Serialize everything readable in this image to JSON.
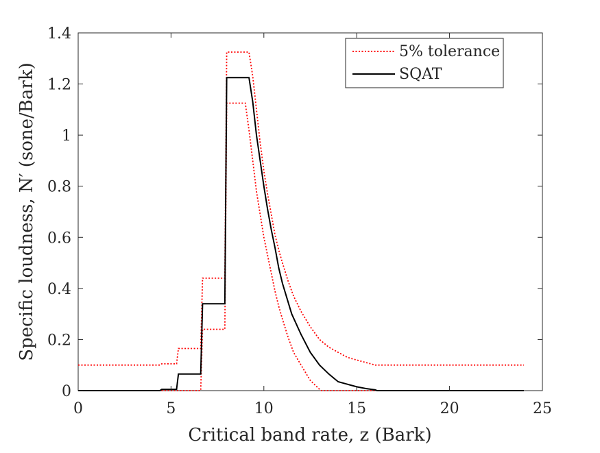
{
  "chart_data": {
    "type": "line",
    "xlabel": "Critical band rate, z (Bark)",
    "ylabel": "Specific loudness, N′ (sone/Bark)",
    "xlim": [
      0,
      25
    ],
    "ylim": [
      0,
      1.4
    ],
    "xticks": [
      "0",
      "5",
      "10",
      "15",
      "20",
      "25"
    ],
    "yticks": [
      "0",
      "0.2",
      "0.4",
      "0.6",
      "0.8",
      "1",
      "1.2",
      "1.4"
    ],
    "grid": false,
    "legend_position": "top-right",
    "series": [
      {
        "name": "5% tolerance",
        "color": "#ff0000",
        "style": "dotted",
        "x": [
          0,
          4.4,
          4.5,
          5.3,
          5.4,
          6.6,
          6.7,
          7.9,
          8.0,
          9.2,
          9.4,
          9.6,
          9.8,
          10.0,
          10.2,
          10.4,
          10.6,
          10.8,
          11.0,
          11.3,
          11.6,
          12.0,
          12.5,
          13.0,
          13.5,
          14.0,
          14.5,
          15.0,
          15.5,
          16.0,
          16.2,
          24.0
        ],
        "y": [
          0.1,
          0.1,
          0.105,
          0.105,
          0.165,
          0.165,
          0.44,
          0.44,
          1.325,
          1.325,
          1.23,
          1.1,
          0.97,
          0.86,
          0.77,
          0.69,
          0.61,
          0.55,
          0.5,
          0.43,
          0.37,
          0.31,
          0.25,
          0.2,
          0.17,
          0.15,
          0.13,
          0.12,
          0.11,
          0.1,
          0.1,
          0.1
        ]
      },
      {
        "name": "",
        "color": "#ff0000",
        "style": "dotted",
        "x": [
          0,
          6.6,
          6.7,
          7.9,
          8.0,
          9.0,
          9.2,
          9.4,
          9.6,
          9.8,
          10.0,
          10.2,
          10.4,
          10.6,
          10.8,
          11.0,
          11.3,
          11.6,
          12.0,
          12.5,
          13.0,
          13.1,
          24.0
        ],
        "y": [
          0,
          0,
          0.24,
          0.24,
          1.125,
          1.125,
          1.02,
          0.9,
          0.78,
          0.69,
          0.6,
          0.53,
          0.46,
          0.39,
          0.33,
          0.28,
          0.21,
          0.15,
          0.1,
          0.04,
          0.005,
          0,
          0
        ]
      },
      {
        "name": "SQAT",
        "color": "#000000",
        "style": "solid",
        "x": [
          0,
          4.4,
          4.5,
          5.3,
          5.4,
          6.6,
          6.7,
          7.9,
          8.0,
          9.2,
          9.4,
          9.6,
          9.8,
          10.0,
          10.2,
          10.4,
          10.6,
          10.8,
          11.0,
          11.5,
          12.0,
          12.5,
          13.0,
          13.5,
          14.0,
          14.5,
          15.0,
          15.5,
          16.0,
          16.1,
          24.0
        ],
        "y": [
          0,
          0,
          0.005,
          0.005,
          0.065,
          0.065,
          0.34,
          0.34,
          1.225,
          1.225,
          1.13,
          1.0,
          0.9,
          0.8,
          0.71,
          0.63,
          0.56,
          0.48,
          0.42,
          0.3,
          0.22,
          0.15,
          0.1,
          0.065,
          0.035,
          0.025,
          0.015,
          0.008,
          0.003,
          0,
          0
        ]
      }
    ]
  }
}
